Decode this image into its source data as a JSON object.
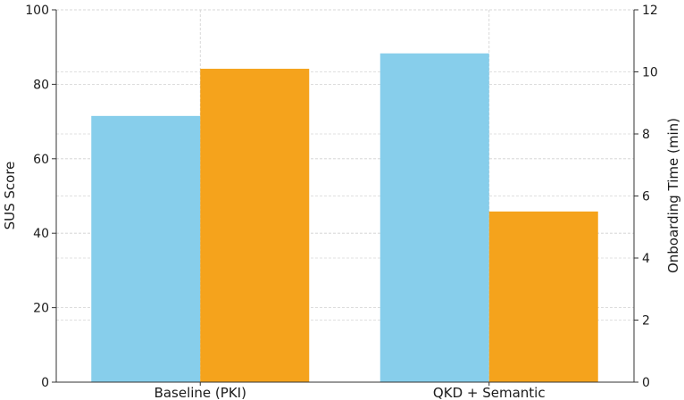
{
  "chart_data": {
    "type": "bar",
    "categories": [
      "Baseline (PKI)",
      "QKD + Semantic"
    ],
    "series": [
      {
        "axis": "left",
        "color": "#87ceeb",
        "values": [
          71.5,
          88.3
        ]
      },
      {
        "axis": "right",
        "color": "#f5a31c",
        "values": [
          10.1,
          5.5
        ]
      }
    ],
    "ylabel": "SUS Score",
    "ylim": [
      0,
      100
    ],
    "yticks": [
      0,
      20,
      40,
      60,
      80,
      100
    ],
    "y2label": "Onboarding Time (min)",
    "y2lim": [
      0,
      12
    ],
    "y2ticks": [
      0,
      2,
      4,
      6,
      8,
      10,
      12
    ],
    "grid": true
  }
}
